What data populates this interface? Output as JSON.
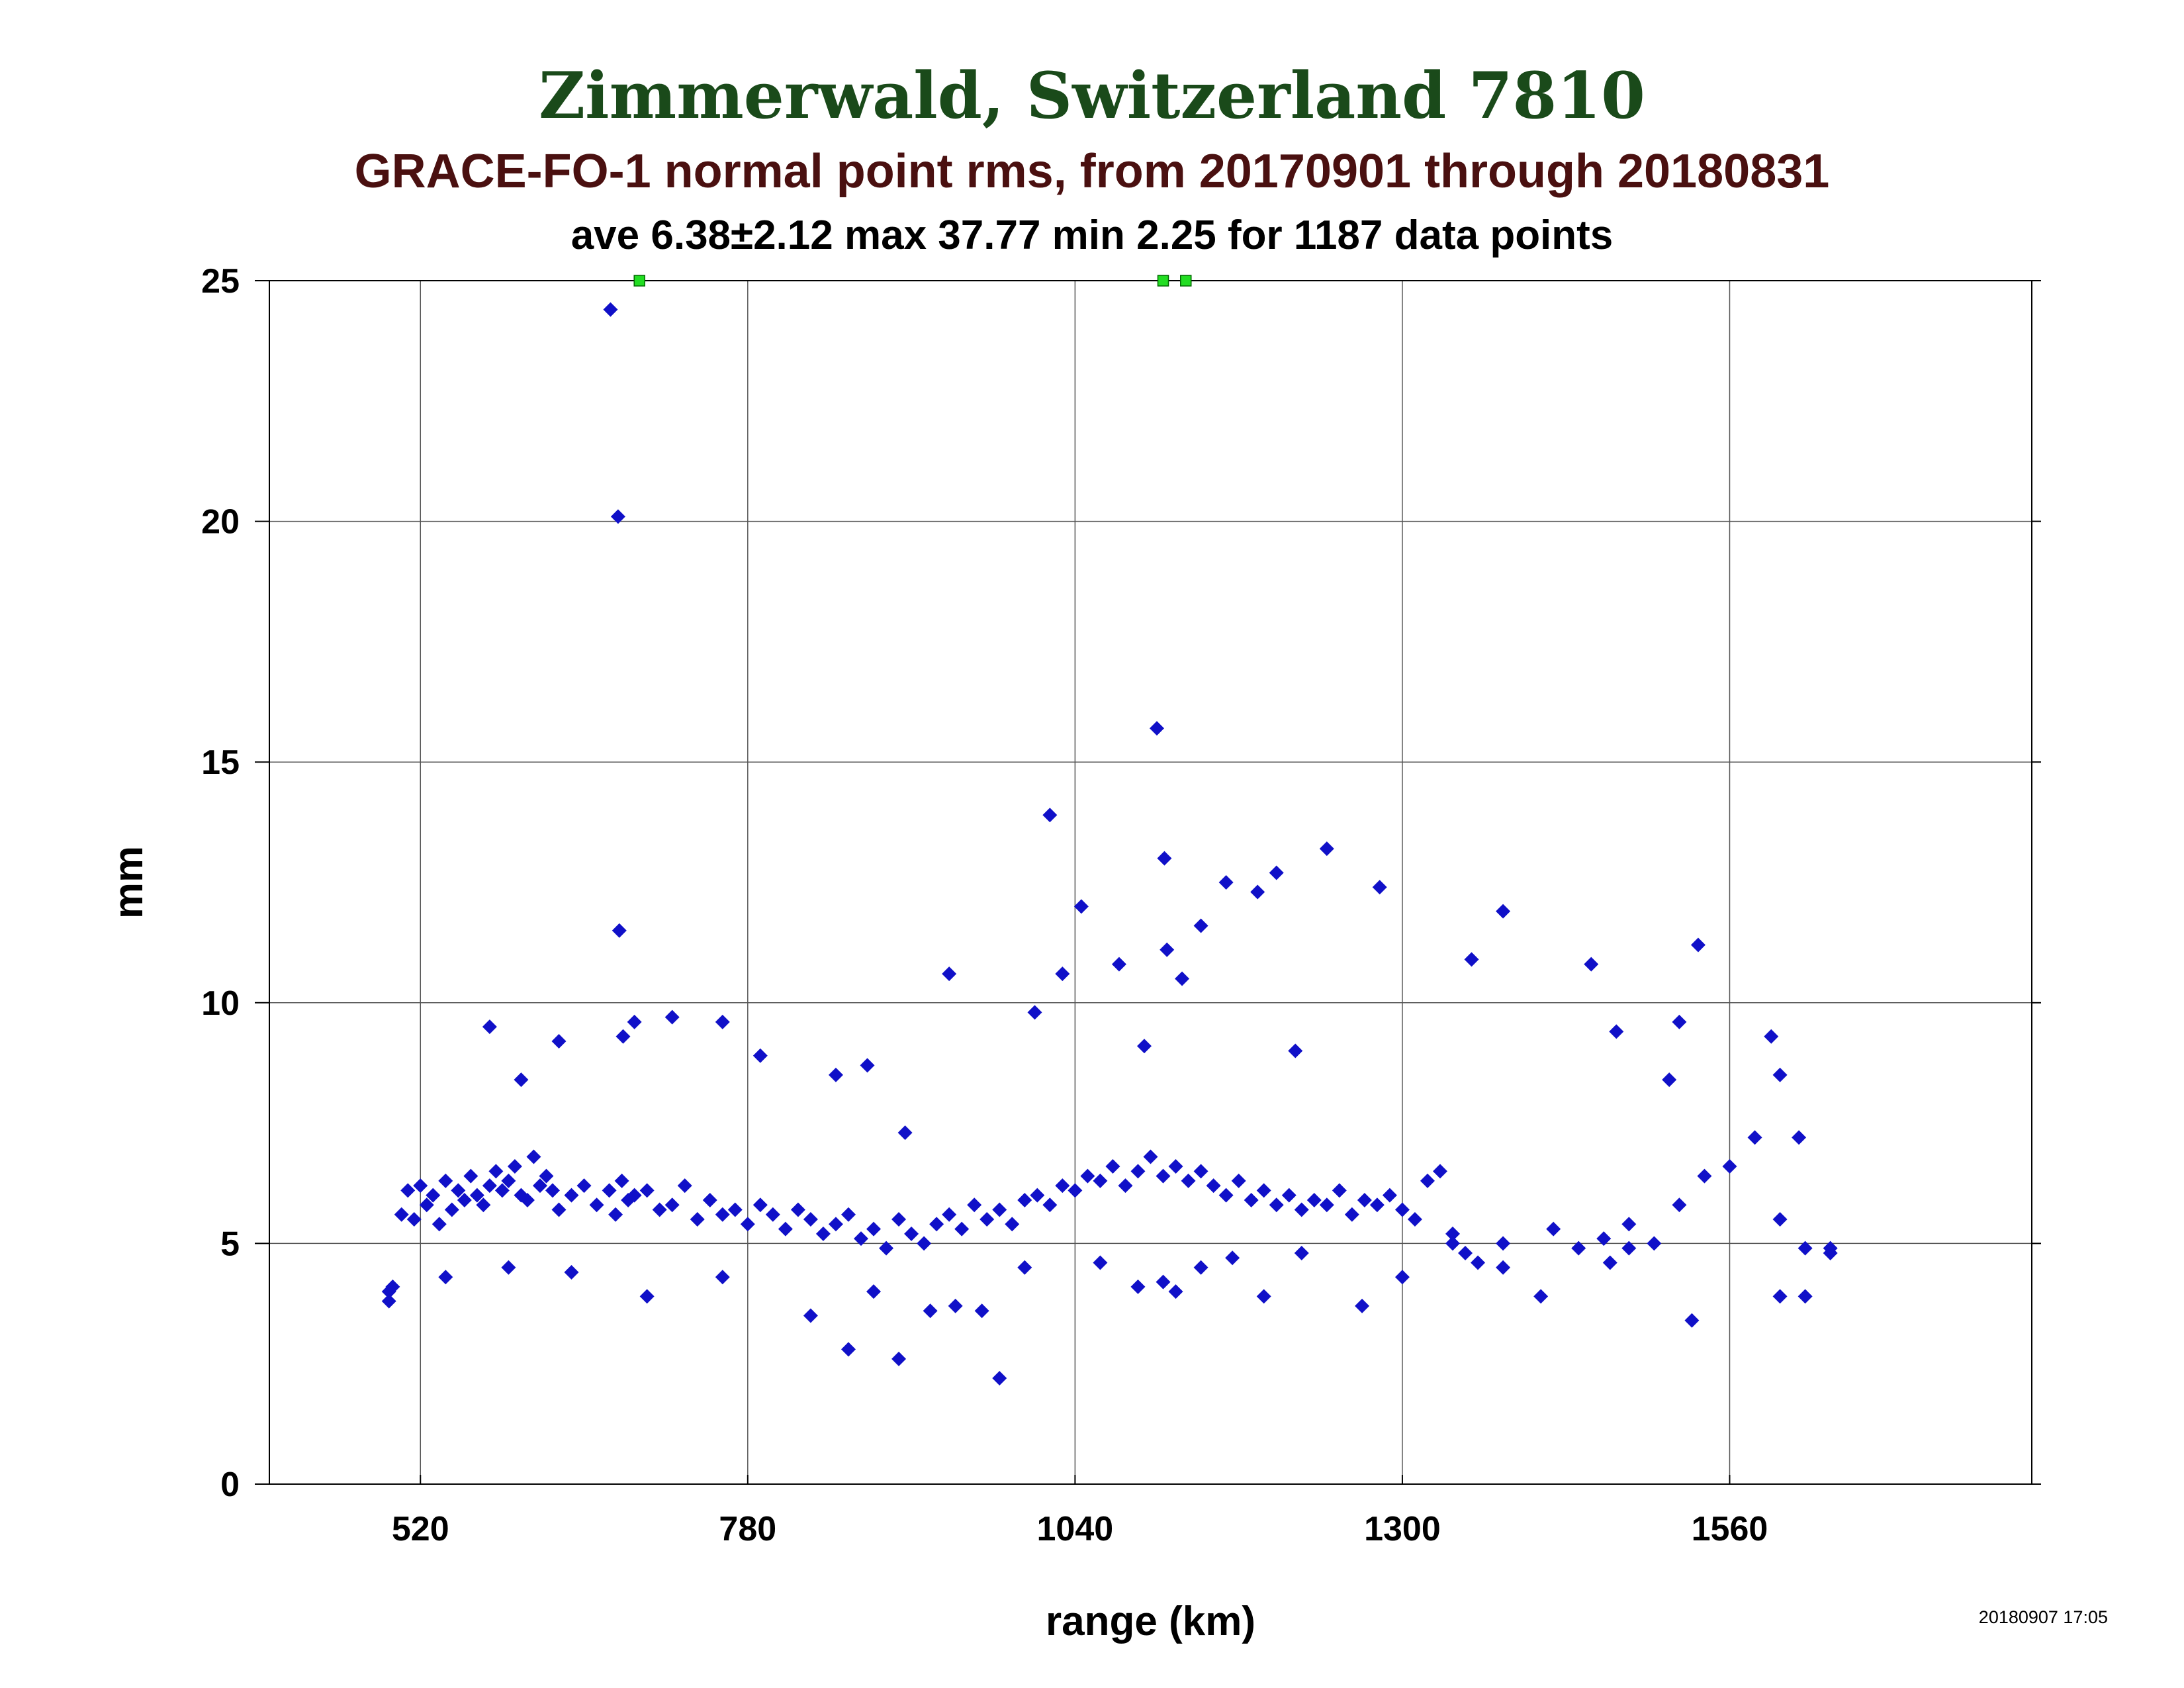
{
  "title": "Zimmerwald, Switzerland 7810",
  "subtitle": "GRACE-FO-1 normal point rms, from 20170901 through 20180831",
  "stats_line": "ave 6.38±2.12 max 37.77 min 2.25 for 1187 data points",
  "timestamp": "20180907 17:05",
  "colors": {
    "title": "#1a4a1a",
    "subtitle": "#4a1010",
    "points": "#1010c8",
    "clipped": "#22dd22",
    "grid": "#555555"
  },
  "chart_data": {
    "type": "scatter",
    "xlabel": "range (km)",
    "ylabel": "mm",
    "xlim": [
      400,
      1800
    ],
    "ylim": [
      0,
      25
    ],
    "xticks": [
      520,
      780,
      1040,
      1300,
      1560
    ],
    "yticks": [
      0,
      5,
      10,
      15,
      20,
      25
    ],
    "grid": true,
    "outliers_above_range_x": [
      694,
      1110,
      1128
    ],
    "series": [
      {
        "marker": "diamond",
        "x": [
          495,
          498,
          505,
          510,
          515,
          520,
          525,
          530,
          535,
          540,
          545,
          550,
          555,
          560,
          565,
          570,
          575,
          580,
          585,
          590,
          595,
          600,
          605,
          610,
          615,
          620,
          625,
          630,
          640,
          650,
          660,
          670,
          675,
          680,
          685,
          690,
          700,
          710,
          720,
          730,
          740,
          750,
          760,
          770,
          780,
          790,
          800,
          810,
          820,
          830,
          840,
          850,
          860,
          870,
          880,
          890,
          900,
          910,
          920,
          930,
          940,
          950,
          960,
          970,
          980,
          990,
          1000,
          1010,
          1020,
          1030,
          1040,
          1050,
          1060,
          1070,
          1080,
          1090,
          1100,
          1110,
          1120,
          1130,
          1140,
          1150,
          1160,
          1170,
          1180,
          1190,
          1200,
          1210,
          1220,
          1230,
          1240,
          1250,
          1260,
          1270,
          1280,
          1290,
          1300,
          1310,
          1320,
          1330,
          1340,
          1350,
          1360,
          1380,
          1420,
          1440,
          1460,
          1480,
          1500,
          1520,
          1540,
          1560,
          1580,
          1600,
          1620,
          1640,
          671,
          677,
          678,
          681,
          575,
          600,
          630,
          690,
          720,
          760,
          790,
          850,
          875,
          905,
          940,
          980,
          1008,
          1020,
          1030,
          1045,
          1075,
          1095,
          1105,
          1111,
          1113,
          1125,
          1140,
          1160,
          1185,
          1200,
          1215,
          1240,
          1282,
          1355,
          1380,
          1450,
          1470,
          1512,
          1520,
          1535,
          1593,
          1600,
          1615,
          495,
          540,
          590,
          640,
          700,
          760,
          830,
          860,
          880,
          900,
          925,
          945,
          966,
          1000,
          1060,
          1090,
          1110,
          1120,
          1140,
          1165,
          1190,
          1220,
          1268,
          1300,
          1340,
          1380,
          1410,
          1465,
          1480,
          1530,
          1600,
          1620,
          1640
        ],
        "y": [
          3.8,
          4.1,
          5.6,
          6.1,
          5.5,
          6.2,
          5.8,
          6.0,
          5.4,
          6.3,
          5.7,
          6.1,
          5.9,
          6.4,
          6.0,
          5.8,
          6.2,
          6.5,
          6.1,
          6.3,
          6.6,
          6.0,
          5.9,
          6.8,
          6.2,
          6.4,
          6.1,
          5.7,
          6.0,
          6.2,
          5.8,
          6.1,
          5.6,
          6.3,
          5.9,
          6.0,
          6.1,
          5.7,
          5.8,
          6.2,
          5.5,
          5.9,
          5.6,
          5.7,
          5.4,
          5.8,
          5.6,
          5.3,
          5.7,
          5.5,
          5.2,
          5.4,
          5.6,
          5.1,
          5.3,
          4.9,
          5.5,
          5.2,
          5.0,
          5.4,
          5.6,
          5.3,
          5.8,
          5.5,
          5.7,
          5.4,
          5.9,
          6.0,
          5.8,
          6.2,
          6.1,
          6.4,
          6.3,
          6.6,
          6.2,
          6.5,
          6.8,
          6.4,
          6.6,
          6.3,
          6.5,
          6.2,
          6.0,
          6.3,
          5.9,
          6.1,
          5.8,
          6.0,
          5.7,
          5.9,
          5.8,
          6.1,
          5.6,
          5.9,
          5.8,
          6.0,
          5.7,
          5.5,
          6.3,
          6.5,
          5.2,
          4.8,
          4.6,
          5.0,
          5.3,
          4.9,
          5.1,
          5.4,
          5.0,
          5.8,
          6.4,
          6.6,
          7.2,
          5.5,
          3.9,
          4.9,
          24.4,
          20.1,
          11.5,
          9.3,
          9.5,
          8.4,
          9.2,
          9.6,
          9.7,
          9.6,
          8.9,
          8.5,
          8.7,
          7.3,
          10.6,
          2.2,
          9.8,
          13.9,
          10.6,
          12.0,
          10.8,
          9.1,
          15.7,
          13.0,
          11.1,
          10.5,
          11.6,
          12.5,
          12.3,
          12.7,
          9.0,
          13.2,
          12.4,
          10.9,
          11.9,
          10.8,
          9.4,
          8.4,
          9.6,
          11.2,
          9.3,
          8.5,
          7.2,
          4.0,
          4.3,
          4.5,
          4.4,
          3.9,
          4.3,
          3.5,
          2.8,
          4.0,
          2.6,
          3.6,
          3.7,
          3.6,
          4.5,
          4.6,
          4.1,
          4.2,
          4.0,
          4.5,
          4.7,
          3.9,
          4.8,
          3.7,
          4.3,
          5.0,
          4.5,
          3.9,
          4.6,
          4.9,
          3.4,
          3.9,
          4.9,
          4.8
        ]
      }
    ]
  }
}
